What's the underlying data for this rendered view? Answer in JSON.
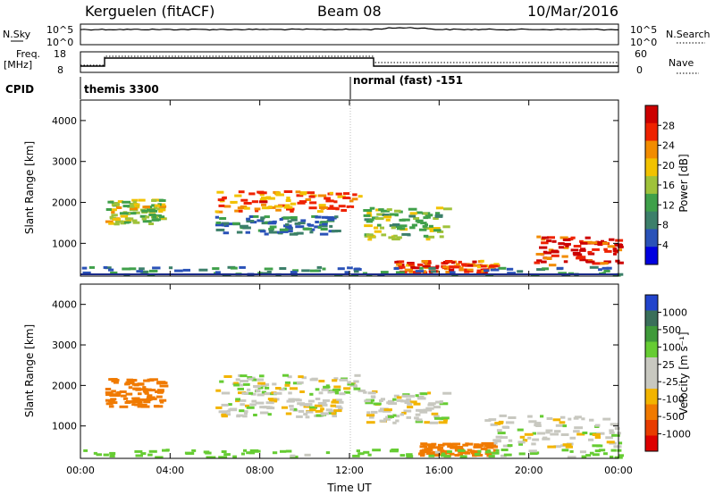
{
  "header": {
    "station": "Kerguelen (fitACF)",
    "beam": "Beam 08",
    "date": "10/Mar/2016"
  },
  "top_panel": {
    "left_label": "N.Sky",
    "right_label": "N.Search",
    "left_ticks": [
      "10^5",
      "10^0"
    ],
    "right_ticks": [
      "10^5",
      "10^0"
    ]
  },
  "freq_panel": {
    "left_label_1": "Freq.",
    "left_label_2": "[MHz]",
    "right_label": "Nave",
    "left_ticks": [
      "18",
      "8"
    ],
    "right_ticks": [
      "60",
      "0"
    ]
  },
  "cpid": {
    "label": "CPID",
    "mode_1": "themis 3300",
    "mode_2": "normal (fast) -151"
  },
  "chart_data": [
    {
      "type": "heatmap",
      "panel": "power",
      "ylabel": "Slant Range [km]",
      "xlabel": "Time UT",
      "xlim": [
        0,
        24
      ],
      "ylim": [
        200,
        4500
      ],
      "x_ticks": [
        "00:00",
        "04:00",
        "08:00",
        "12:00",
        "16:00",
        "20:00",
        "00:00"
      ],
      "y_ticks": [
        "1000",
        "2000",
        "3000",
        "4000"
      ],
      "colorbar": {
        "label": "Power [dB]",
        "ticks": [
          "4",
          "8",
          "12",
          "16",
          "20",
          "24",
          "28"
        ],
        "range": [
          0,
          30
        ],
        "colors": [
          "#0000e0",
          "#2a52b8",
          "#3c7f6a",
          "#3fa04a",
          "#9fc23a",
          "#f2c200",
          "#f28c00",
          "#ee2200",
          "#cc0000"
        ]
      },
      "echo_regions": [
        {
          "t": [
            1.1,
            3.6
          ],
          "r": [
            1500,
            2100
          ],
          "value": 16
        },
        {
          "t": [
            6.0,
            12.4
          ],
          "r": [
            1800,
            2300
          ],
          "value": 22
        },
        {
          "t": [
            6.0,
            11.5
          ],
          "r": [
            1250,
            1700
          ],
          "value": 8
        },
        {
          "t": [
            12.6,
            16.2
          ],
          "r": [
            1100,
            1900
          ],
          "value": 14
        },
        {
          "t": [
            14.0,
            18.5
          ],
          "r": [
            300,
            600
          ],
          "value": 24
        },
        {
          "t": [
            20.2,
            24.0
          ],
          "r": [
            500,
            1200
          ],
          "value": 26
        },
        {
          "t": [
            0.0,
            24.0
          ],
          "r": [
            250,
            450
          ],
          "value": 8
        }
      ]
    },
    {
      "type": "heatmap",
      "panel": "velocity",
      "ylabel": "Slant Range [km]",
      "xlabel": "Time UT",
      "xlim": [
        0,
        24
      ],
      "ylim": [
        200,
        4500
      ],
      "x_ticks": [
        "00:00",
        "04:00",
        "08:00",
        "12:00",
        "16:00",
        "20:00",
        "00:00"
      ],
      "y_ticks": [
        "1000",
        "2000",
        "3000",
        "4000"
      ],
      "colorbar": {
        "label": "Velocity [m s⁻¹]",
        "ticks": [
          "1000",
          "500",
          "100",
          "25",
          "-25",
          "-100",
          "-500",
          "-1000"
        ],
        "colors": [
          "#2244cc",
          "#3a6f5a",
          "#3f9a3a",
          "#66cc33",
          "#c8c8c0",
          "#c8c8c0",
          "#f2b400",
          "#f07a00",
          "#e83c00",
          "#dd0000"
        ]
      },
      "echo_regions": [
        {
          "t": [
            1.1,
            3.6
          ],
          "r": [
            1500,
            2200
          ],
          "value": -150
        },
        {
          "t": [
            6.0,
            12.4
          ],
          "r": [
            1800,
            2300
          ],
          "value": 0
        },
        {
          "t": [
            6.0,
            11.5
          ],
          "r": [
            1250,
            1700
          ],
          "value": 0
        },
        {
          "t": [
            12.6,
            16.2
          ],
          "r": [
            1100,
            1900
          ],
          "value": 0
        },
        {
          "t": [
            15.0,
            18.5
          ],
          "r": [
            300,
            600
          ],
          "value": -200
        },
        {
          "t": [
            18.0,
            24.0
          ],
          "r": [
            500,
            1300
          ],
          "value": 0
        },
        {
          "t": [
            0.0,
            24.0
          ],
          "r": [
            250,
            450
          ],
          "value": 60
        }
      ]
    }
  ],
  "colors": {
    "frame": "#000000",
    "mode_line": "#808080"
  }
}
